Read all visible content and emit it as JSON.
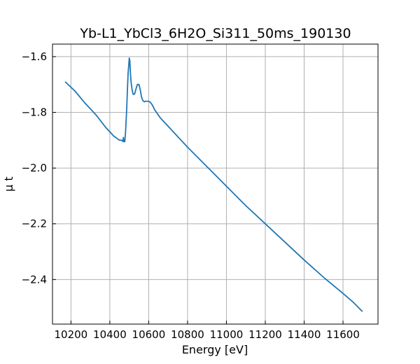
{
  "chart_data": {
    "type": "line",
    "title": "Yb-L1_YbCl3_6H2O_Si311_50ms_190130",
    "xlabel": "Energy [eV]",
    "ylabel": "μ t",
    "xlim": [
      10105,
      11780
    ],
    "ylim": [
      -2.56,
      -1.555
    ],
    "xticks": [
      10200,
      10400,
      10600,
      10800,
      11000,
      11200,
      11400,
      11600
    ],
    "yticks": [
      -2.4,
      -2.2,
      -2.0,
      -1.8,
      -1.6
    ],
    "grid": true,
    "series": [
      {
        "color": "#1f77b4",
        "x": [
          10170,
          10220,
          10270,
          10330,
          10380,
          10420,
          10450,
          10462,
          10468,
          10470,
          10473,
          10477,
          10481,
          10486,
          10490,
          10494,
          10498,
          10500,
          10503,
          10506,
          10510,
          10515,
          10520,
          10527,
          10535,
          10542,
          10550,
          10557,
          10563,
          10570,
          10578,
          10585,
          10592,
          10600,
          10610,
          10620,
          10630,
          10640,
          10660,
          10700,
          10760,
          10800,
          10900,
          11000,
          11100,
          11200,
          11300,
          11400,
          11500,
          11600,
          11650,
          11700
        ],
        "y": [
          -1.69,
          -1.723,
          -1.765,
          -1.81,
          -1.855,
          -1.885,
          -1.9,
          -1.9,
          -1.905,
          -1.89,
          -1.905,
          -1.905,
          -1.87,
          -1.8,
          -1.73,
          -1.66,
          -1.625,
          -1.605,
          -1.615,
          -1.66,
          -1.695,
          -1.72,
          -1.735,
          -1.735,
          -1.715,
          -1.7,
          -1.7,
          -1.72,
          -1.745,
          -1.758,
          -1.762,
          -1.76,
          -1.76,
          -1.76,
          -1.765,
          -1.775,
          -1.79,
          -1.8,
          -1.82,
          -1.85,
          -1.895,
          -1.925,
          -1.995,
          -2.065,
          -2.135,
          -2.2,
          -2.265,
          -2.33,
          -2.392,
          -2.45,
          -2.48,
          -2.515
        ]
      }
    ]
  }
}
